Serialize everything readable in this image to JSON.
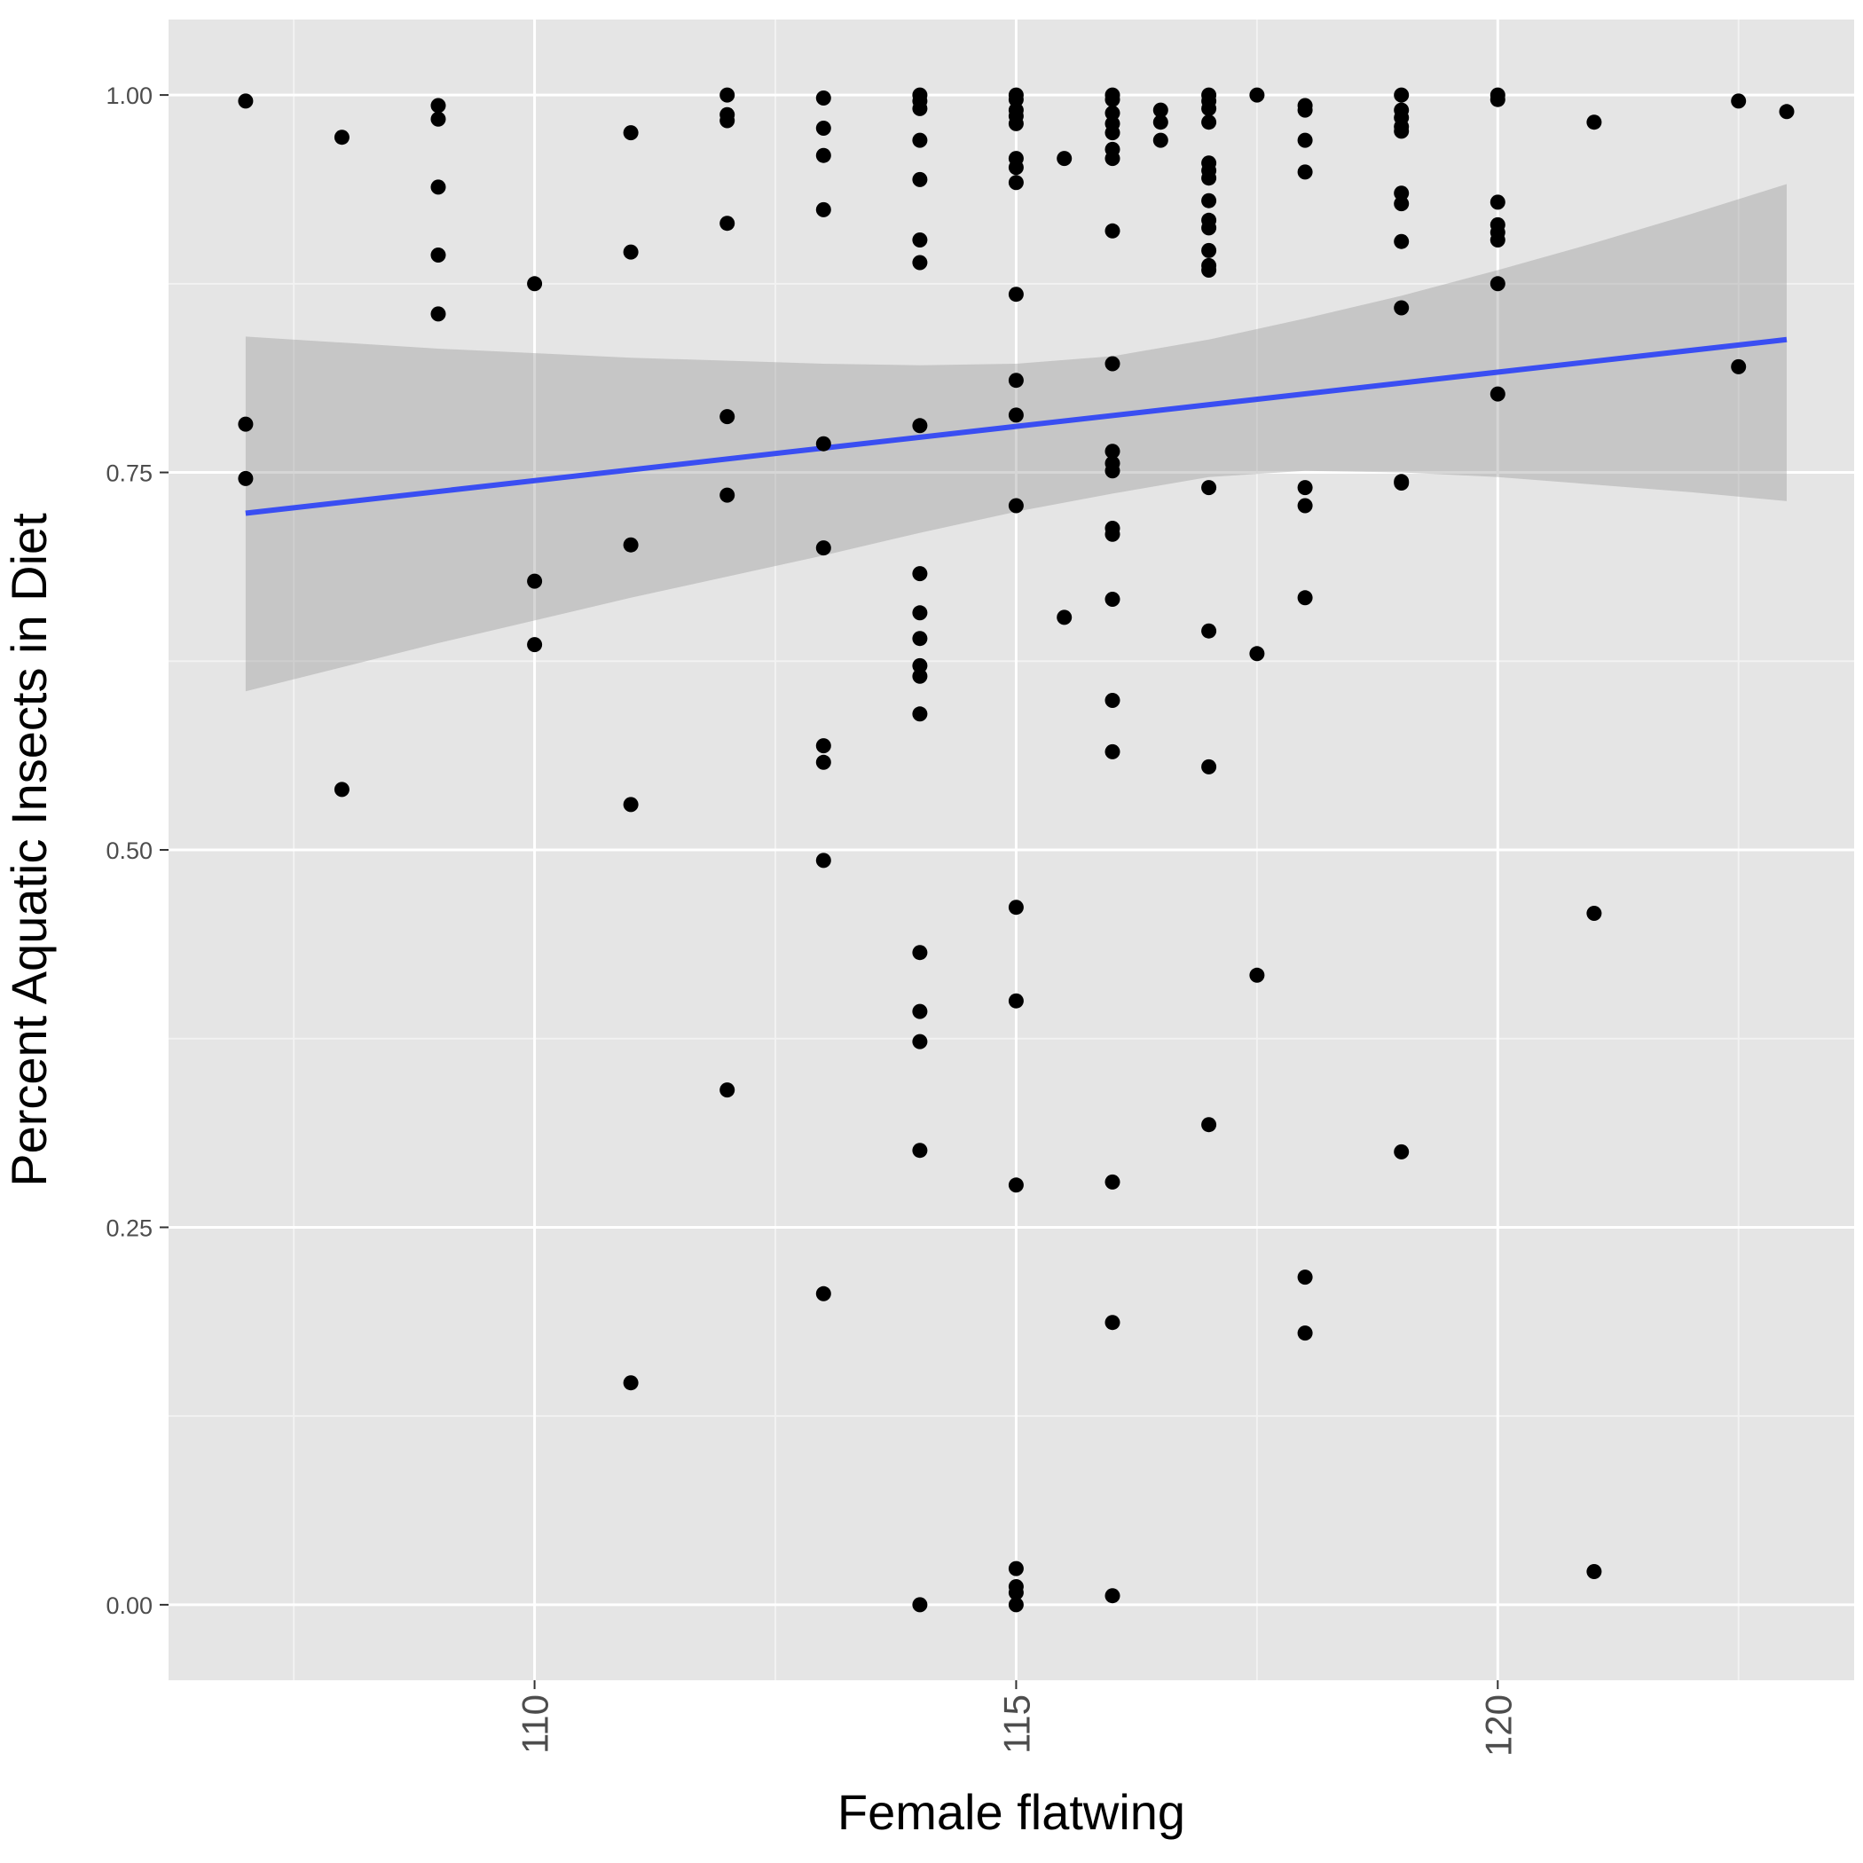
{
  "colors": {
    "panel": "#e5e5e5",
    "grid_major": "#ffffff",
    "grid_minor": "#f2f2f2",
    "points": "#000000",
    "fit_line": "#3a4ef2",
    "ribbon": "#999999",
    "tick_text": "#4d4d4d"
  },
  "chart_data": {
    "type": "scatter",
    "title": "",
    "xlabel": "Female flatwing",
    "ylabel": "Percent Aquatic Insects in Diet",
    "xlim": [
      106.2,
      123.7
    ],
    "ylim": [
      -0.05,
      1.05
    ],
    "x_ticks": [
      110,
      115,
      120
    ],
    "x_tick_labels": [
      "110",
      "115",
      "120"
    ],
    "x_minor_ticks": [
      107.5,
      112.5,
      117.5,
      122.5
    ],
    "y_ticks": [
      0,
      0.25,
      0.5,
      0.75,
      1
    ],
    "y_tick_labels": [
      "0.00",
      "0.25",
      "0.50",
      "0.75",
      "1.00"
    ],
    "y_minor_ticks": [
      0.125,
      0.375,
      0.625,
      0.875
    ],
    "x_tick_label_rotation": -90,
    "grid": true,
    "legend": "none",
    "points": [
      [
        107,
        0.996
      ],
      [
        107,
        0.782
      ],
      [
        107,
        0.746
      ],
      [
        108,
        0.972
      ],
      [
        108,
        0.54
      ],
      [
        109,
        0.993
      ],
      [
        109,
        0.984
      ],
      [
        109,
        0.939
      ],
      [
        109,
        0.894
      ],
      [
        109,
        0.855
      ],
      [
        110,
        0.875
      ],
      [
        110,
        0.678
      ],
      [
        110,
        0.636
      ],
      [
        111,
        0.975
      ],
      [
        111,
        0.896
      ],
      [
        111,
        0.702
      ],
      [
        111,
        0.53
      ],
      [
        111,
        0.147
      ],
      [
        112,
        1.0
      ],
      [
        112,
        0.987
      ],
      [
        112,
        0.983
      ],
      [
        112,
        0.915
      ],
      [
        112,
        0.787
      ],
      [
        112,
        0.735
      ],
      [
        112,
        0.341
      ],
      [
        113,
        0.998
      ],
      [
        113,
        0.978
      ],
      [
        113,
        0.96
      ],
      [
        113,
        0.924
      ],
      [
        113,
        0.769
      ],
      [
        113,
        0.7
      ],
      [
        113,
        0.569
      ],
      [
        113,
        0.558
      ],
      [
        113,
        0.493
      ],
      [
        113,
        0.206
      ],
      [
        114,
        1.0
      ],
      [
        114,
        0.996
      ],
      [
        114,
        0.991
      ],
      [
        114,
        0.97
      ],
      [
        114,
        0.944
      ],
      [
        114,
        0.904
      ],
      [
        114,
        0.889
      ],
      [
        114,
        0.781
      ],
      [
        114,
        0.683
      ],
      [
        114,
        0.657
      ],
      [
        114,
        0.64
      ],
      [
        114,
        0.622
      ],
      [
        114,
        0.615
      ],
      [
        114,
        0.59
      ],
      [
        114,
        0.432
      ],
      [
        114,
        0.393
      ],
      [
        114,
        0.373
      ],
      [
        114,
        0.301
      ],
      [
        114,
        0.0
      ],
      [
        115,
        1.0
      ],
      [
        115,
        0.997
      ],
      [
        115,
        0.99
      ],
      [
        115,
        0.986
      ],
      [
        115,
        0.981
      ],
      [
        115,
        0.958
      ],
      [
        115,
        0.952
      ],
      [
        115,
        0.942
      ],
      [
        115,
        0.868
      ],
      [
        115,
        0.811
      ],
      [
        115,
        0.788
      ],
      [
        115,
        0.728
      ],
      [
        115,
        0.462
      ],
      [
        115,
        0.4
      ],
      [
        115,
        0.278
      ],
      [
        115,
        0.024
      ],
      [
        115,
        0.012
      ],
      [
        115,
        0.008
      ],
      [
        115,
        0.0
      ],
      [
        115.5,
        0.958
      ],
      [
        115.5,
        0.654
      ],
      [
        116,
        1.0
      ],
      [
        116,
        0.997
      ],
      [
        116,
        0.988
      ],
      [
        116,
        0.981
      ],
      [
        116,
        0.975
      ],
      [
        116,
        0.964
      ],
      [
        116,
        0.958
      ],
      [
        116,
        0.91
      ],
      [
        116,
        0.822
      ],
      [
        116,
        0.764
      ],
      [
        116,
        0.756
      ],
      [
        116,
        0.751
      ],
      [
        116,
        0.713
      ],
      [
        116,
        0.709
      ],
      [
        116,
        0.666
      ],
      [
        116,
        0.599
      ],
      [
        116,
        0.565
      ],
      [
        116,
        0.28
      ],
      [
        116,
        0.187
      ],
      [
        116,
        0.006
      ],
      [
        116.5,
        0.99
      ],
      [
        116.5,
        0.982
      ],
      [
        116.5,
        0.97
      ],
      [
        117,
        1.0
      ],
      [
        117,
        0.996
      ],
      [
        117,
        0.991
      ],
      [
        117,
        0.982
      ],
      [
        117,
        0.955
      ],
      [
        117,
        0.95
      ],
      [
        117,
        0.945
      ],
      [
        117,
        0.93
      ],
      [
        117,
        0.917
      ],
      [
        117,
        0.912
      ],
      [
        117,
        0.897
      ],
      [
        117,
        0.887
      ],
      [
        117,
        0.884
      ],
      [
        117,
        0.74
      ],
      [
        117,
        0.645
      ],
      [
        117,
        0.555
      ],
      [
        117,
        0.318
      ],
      [
        117.5,
        1.0
      ],
      [
        117.5,
        0.63
      ],
      [
        117.5,
        0.417
      ],
      [
        118,
        0.993
      ],
      [
        118,
        0.99
      ],
      [
        118,
        0.97
      ],
      [
        118,
        0.949
      ],
      [
        118,
        0.74
      ],
      [
        118,
        0.728
      ],
      [
        118,
        0.667
      ],
      [
        118,
        0.217
      ],
      [
        118,
        0.18
      ],
      [
        119,
        1.0
      ],
      [
        119,
        0.99
      ],
      [
        119,
        0.985
      ],
      [
        119,
        0.979
      ],
      [
        119,
        0.976
      ],
      [
        119,
        0.935
      ],
      [
        119,
        0.928
      ],
      [
        119,
        0.903
      ],
      [
        119,
        0.859
      ],
      [
        119,
        0.744
      ],
      [
        119,
        0.743
      ],
      [
        119,
        0.3
      ],
      [
        120,
        1.0
      ],
      [
        120,
        0.997
      ],
      [
        120,
        0.929
      ],
      [
        120,
        0.914
      ],
      [
        120,
        0.909
      ],
      [
        120,
        0.904
      ],
      [
        120,
        0.875
      ],
      [
        120,
        0.802
      ],
      [
        121,
        0.982
      ],
      [
        121,
        0.458
      ],
      [
        121,
        0.022
      ],
      [
        122.5,
        0.996
      ],
      [
        122.5,
        0.82
      ],
      [
        123,
        0.989
      ]
    ],
    "fit_line": {
      "x": [
        107,
        123
      ],
      "y": [
        0.723,
        0.838
      ]
    },
    "confidence_band": {
      "x": [
        107,
        109,
        111,
        113,
        114,
        115,
        116,
        117,
        118,
        119,
        120,
        121,
        122,
        123
      ],
      "upper": [
        0.84,
        0.832,
        0.826,
        0.822,
        0.821,
        0.822,
        0.827,
        0.838,
        0.852,
        0.867,
        0.884,
        0.902,
        0.921,
        0.941
      ],
      "lower": [
        0.605,
        0.637,
        0.667,
        0.695,
        0.71,
        0.724,
        0.736,
        0.747,
        0.751,
        0.75,
        0.747,
        0.742,
        0.737,
        0.731
      ]
    }
  }
}
